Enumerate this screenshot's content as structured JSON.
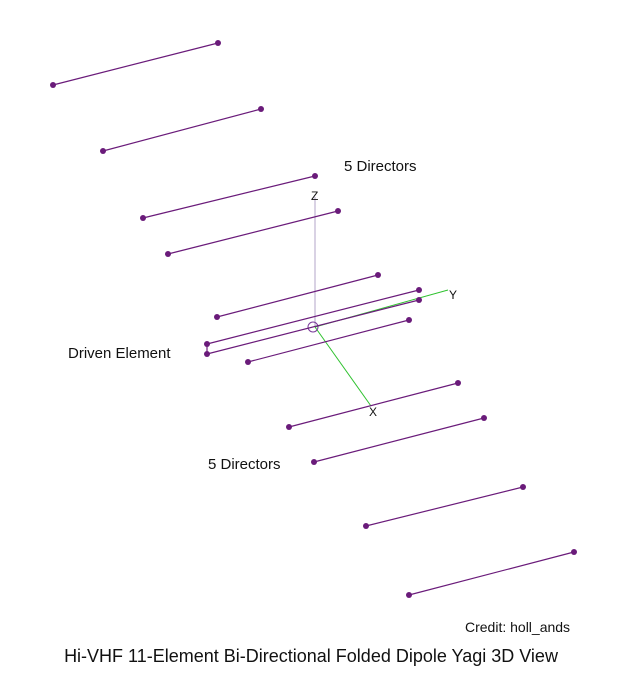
{
  "labels": {
    "top_group": "5 Directors",
    "driven": "Driven Element",
    "bottom_group": "5 Directors"
  },
  "axes": {
    "z": "Z",
    "y": "Y",
    "x": "X"
  },
  "credit": "Credit: holl_ands",
  "title": "Hi-VHF 11-Element Bi-Directional Folded Dipole Yagi 3D View",
  "colors": {
    "element": "#6a1b7a",
    "axis_xy": "#2fc22f",
    "axis_z": "#b3a6c8"
  }
}
